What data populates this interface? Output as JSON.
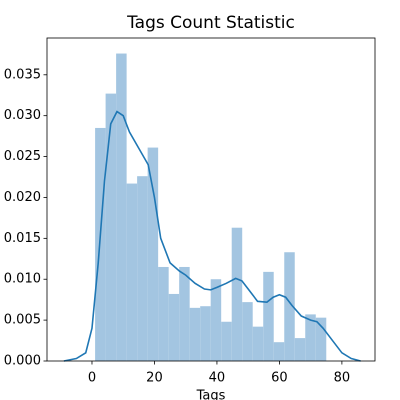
{
  "chart_data": {
    "type": "histogram",
    "title": "Tags Count Statistic",
    "xlabel": "Tags",
    "bins": [
      1,
      4.36,
      7.73,
      11.09,
      14.45,
      17.82,
      21.18,
      24.55,
      27.91,
      31.27,
      34.64,
      38,
      41.36,
      44.73,
      48.09,
      51.45,
      54.82,
      58.18,
      61.55,
      64.91,
      68.27,
      71.64,
      75
    ],
    "counts": [
      0.0285,
      0.0327,
      0.0376,
      0.0217,
      0.0226,
      0.0261,
      0.0115,
      0.0082,
      0.0115,
      0.0065,
      0.0067,
      0.01,
      0.0048,
      0.0163,
      0.0072,
      0.0042,
      0.0109,
      0.0023,
      0.0133,
      0.0028,
      0.0057,
      0.0053
    ],
    "color": "#a3c5e1",
    "kde": {
      "color": "#1f77b4",
      "x": [
        -9,
        -5,
        -2,
        0,
        2,
        4,
        6,
        8,
        10,
        12,
        15,
        18,
        20,
        22,
        25,
        28,
        30,
        33,
        36,
        38,
        40,
        43,
        46,
        48,
        50,
        53,
        56,
        58,
        60,
        62,
        64,
        67,
        70,
        72,
        74,
        77,
        80,
        83,
        86
      ],
      "values": [
        0,
        0.0003,
        0.001,
        0.004,
        0.012,
        0.022,
        0.029,
        0.0305,
        0.03,
        0.028,
        0.026,
        0.024,
        0.02,
        0.015,
        0.012,
        0.011,
        0.0105,
        0.0095,
        0.0088,
        0.0087,
        0.009,
        0.0095,
        0.0101,
        0.0098,
        0.0088,
        0.0073,
        0.0072,
        0.0078,
        0.0081,
        0.0078,
        0.0068,
        0.0055,
        0.005,
        0.0048,
        0.004,
        0.0025,
        0.001,
        0.0003,
        0
      ]
    },
    "xlim": [
      -14.4,
      90.6
    ],
    "ylim": [
      0,
      0.0395
    ],
    "xticks": [
      0,
      20,
      40,
      60,
      80
    ],
    "yticks": [
      {
        "value": 0,
        "label": "0.000"
      },
      {
        "value": 0.005,
        "label": "0.005"
      },
      {
        "value": 0.01,
        "label": "0.010"
      },
      {
        "value": 0.015,
        "label": "0.015"
      },
      {
        "value": 0.02,
        "label": "0.020"
      },
      {
        "value": 0.025,
        "label": "0.025"
      },
      {
        "value": 0.03,
        "label": "0.030"
      },
      {
        "value": 0.035,
        "label": "0.035"
      }
    ]
  }
}
